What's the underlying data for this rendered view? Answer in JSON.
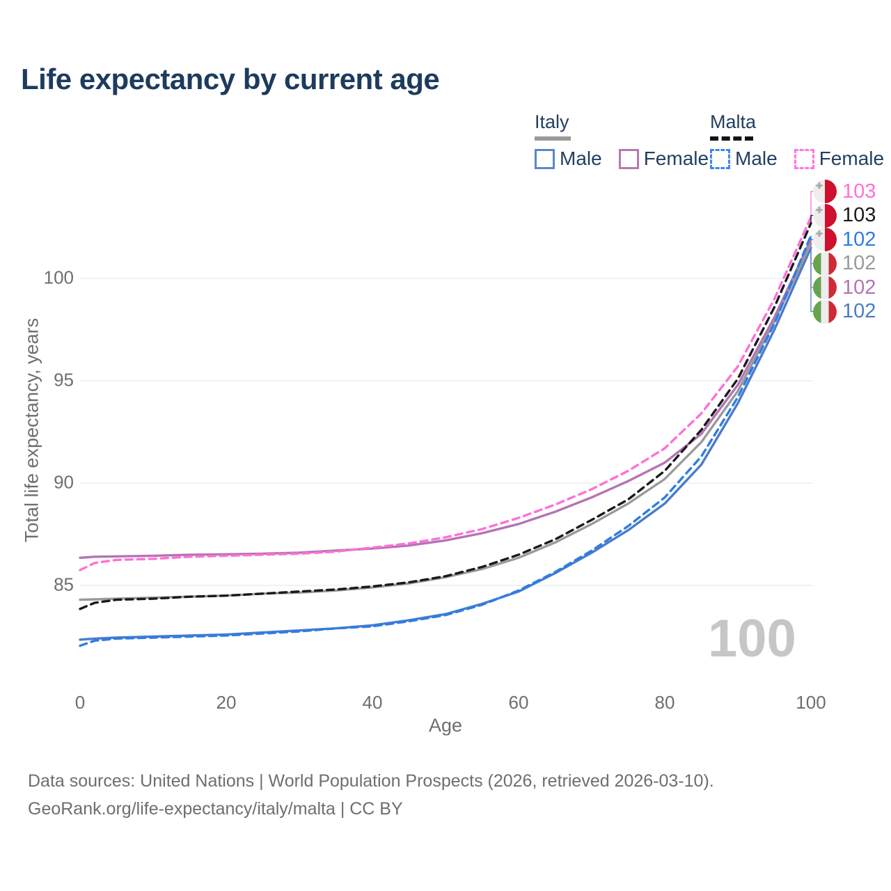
{
  "title": "Life expectancy by current age",
  "watermark": "100",
  "icons": {
    "maltese_cross": "✚"
  },
  "legend": {
    "groups": [
      {
        "label": "Italy",
        "underline_style": "solid",
        "underline_color": "#9a9a9a",
        "items": [
          {
            "label": "Male",
            "color": "#5b87c5",
            "dashed": false
          },
          {
            "label": "Female",
            "color": "#b579b3",
            "dashed": false
          }
        ]
      },
      {
        "label": "Malta",
        "underline_style": "dashed",
        "underline_color": "#141414",
        "items": [
          {
            "label": "Male",
            "color": "#3f86f0",
            "dashed": true
          },
          {
            "label": "Female",
            "color": "#ff77dd",
            "dashed": true
          }
        ]
      }
    ]
  },
  "chart_data": {
    "type": "line",
    "title": "Life expectancy by current age",
    "xlabel": "Age",
    "ylabel": "Total life expectancy, years",
    "grid": "horizontal",
    "legend_position": "top-right",
    "xlim": [
      0,
      100
    ],
    "ylim": [
      81.5,
      103.5
    ],
    "xticks": [
      0,
      20,
      40,
      60,
      80,
      100
    ],
    "yticks": [
      85,
      90,
      95,
      100
    ],
    "x": [
      0,
      2,
      5,
      10,
      15,
      20,
      25,
      30,
      35,
      40,
      45,
      50,
      55,
      60,
      65,
      70,
      75,
      80,
      85,
      90,
      95,
      100
    ],
    "series": [
      {
        "name": "Italy Male",
        "country": "Italy",
        "sex": "Male",
        "color": "#4a7bc9",
        "dash": false,
        "values": [
          82.35,
          82.4,
          82.45,
          82.5,
          82.55,
          82.6,
          82.7,
          82.8,
          82.9,
          83.05,
          83.3,
          83.6,
          84.1,
          84.7,
          85.6,
          86.6,
          87.7,
          89.0,
          90.9,
          93.9,
          97.5,
          101.5
        ]
      },
      {
        "name": "Italy Female",
        "country": "Italy",
        "sex": "Female",
        "color": "#b573b5",
        "dash": false,
        "values": [
          86.35,
          86.4,
          86.42,
          86.45,
          86.5,
          86.52,
          86.55,
          86.6,
          86.7,
          86.8,
          86.95,
          87.2,
          87.55,
          88.0,
          88.6,
          89.3,
          90.1,
          91.0,
          92.4,
          94.8,
          98.1,
          101.9
        ]
      },
      {
        "name": "Italy Both sexes",
        "country": "Italy",
        "sex": "Both",
        "color": "#9a9a9a",
        "dash": false,
        "values": [
          84.3,
          84.32,
          84.35,
          84.4,
          84.45,
          84.5,
          84.6,
          84.65,
          84.75,
          84.9,
          85.1,
          85.4,
          85.8,
          86.35,
          87.1,
          88.0,
          89.0,
          90.2,
          92.0,
          94.5,
          97.9,
          101.7
        ]
      },
      {
        "name": "Malta Male",
        "country": "Malta",
        "sex": "Male",
        "color": "#2e7de5",
        "dash": true,
        "values": [
          82.05,
          82.3,
          82.4,
          82.45,
          82.5,
          82.55,
          82.65,
          82.75,
          82.9,
          83.0,
          83.25,
          83.55,
          84.05,
          84.75,
          85.65,
          86.7,
          87.9,
          89.3,
          91.3,
          94.2,
          97.8,
          102.1
        ]
      },
      {
        "name": "Malta Female",
        "country": "Malta",
        "sex": "Female",
        "color": "#ff70d6",
        "dash": true,
        "values": [
          85.75,
          86.1,
          86.25,
          86.3,
          86.4,
          86.45,
          86.5,
          86.55,
          86.65,
          86.85,
          87.05,
          87.35,
          87.75,
          88.3,
          88.95,
          89.7,
          90.6,
          91.7,
          93.4,
          95.7,
          99.0,
          103.0
        ]
      },
      {
        "name": "Malta Both sexes",
        "country": "Malta",
        "sex": "Both",
        "color": "#1a1a1a",
        "dash": true,
        "values": [
          83.85,
          84.15,
          84.3,
          84.35,
          84.45,
          84.5,
          84.6,
          84.7,
          84.8,
          84.95,
          85.15,
          85.45,
          85.9,
          86.5,
          87.25,
          88.2,
          89.2,
          90.6,
          92.6,
          95.1,
          98.6,
          102.7
        ]
      }
    ],
    "end_labels": [
      {
        "series": "Malta Female",
        "value": "103",
        "color": "#ff70d6",
        "flag": "malta"
      },
      {
        "series": "Malta Both sexes",
        "value": "103",
        "color": "#1a1a1a",
        "flag": "malta"
      },
      {
        "series": "Malta Male",
        "value": "102",
        "color": "#2e7de5",
        "flag": "malta"
      },
      {
        "series": "Italy Both sexes",
        "value": "102",
        "color": "#9a9a9a",
        "flag": "italy"
      },
      {
        "series": "Italy Female",
        "value": "102",
        "color": "#b573b5",
        "flag": "italy"
      },
      {
        "series": "Italy Male",
        "value": "102",
        "color": "#4a7bc9",
        "flag": "italy"
      }
    ]
  },
  "footer": {
    "line1": "Data sources: United Nations | World Population Prospects (2026, retrieved 2026-03-10).",
    "line2": "GeoRank.org/life-expectancy/italy/malta | CC BY"
  }
}
